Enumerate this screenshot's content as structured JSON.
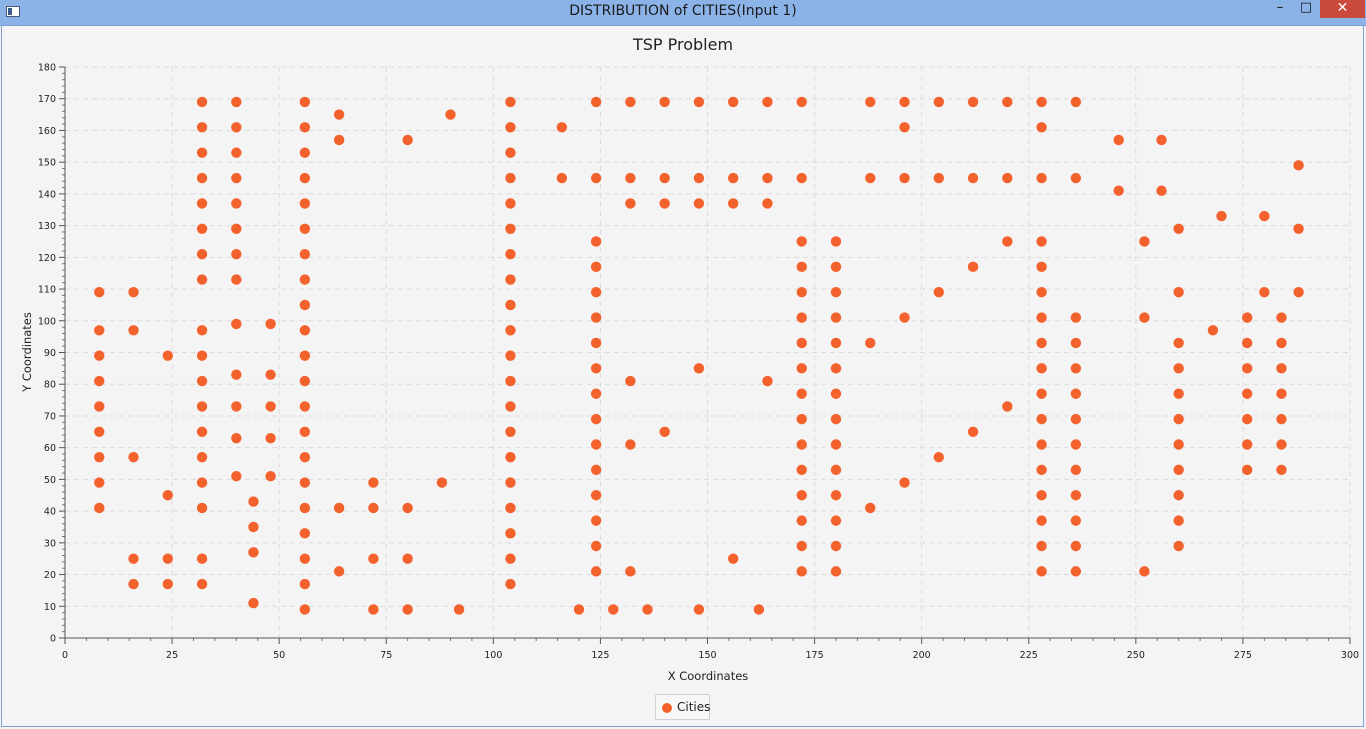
{
  "window": {
    "title": "DISTRIBUTION of CITIES(Input 1)",
    "minimize_icon": "minimize-icon",
    "maximize_icon": "maximize-icon",
    "close_icon": "close-icon",
    "minimize_glyph": "–",
    "maximize_glyph": "□",
    "close_glyph": "✕"
  },
  "chart_data": {
    "type": "scatter",
    "title": "TSP Problem",
    "xlabel": "X Coordinates",
    "ylabel": "Y Coordinates",
    "xlim": [
      0,
      300
    ],
    "ylim": [
      0,
      180
    ],
    "xticks": [
      0,
      25,
      50,
      75,
      100,
      125,
      150,
      175,
      200,
      225,
      250,
      275,
      300
    ],
    "yticks": [
      0,
      10,
      20,
      30,
      40,
      50,
      60,
      70,
      80,
      90,
      100,
      110,
      120,
      130,
      140,
      150,
      160,
      170,
      180
    ],
    "grid": true,
    "legend_position": "bottom-center",
    "series": [
      {
        "name": "Cities",
        "color": "#f3622d",
        "points": [
          [
            8,
            109
          ],
          [
            8,
            97
          ],
          [
            8,
            89
          ],
          [
            8,
            81
          ],
          [
            8,
            73
          ],
          [
            8,
            65
          ],
          [
            8,
            57
          ],
          [
            8,
            49
          ],
          [
            8,
            41
          ],
          [
            16,
            109
          ],
          [
            16,
            97
          ],
          [
            16,
            57
          ],
          [
            16,
            25
          ],
          [
            16,
            17
          ],
          [
            24,
            89
          ],
          [
            24,
            45
          ],
          [
            24,
            25
          ],
          [
            24,
            17
          ],
          [
            32,
            169
          ],
          [
            32,
            161
          ],
          [
            32,
            153
          ],
          [
            32,
            145
          ],
          [
            32,
            137
          ],
          [
            32,
            129
          ],
          [
            32,
            121
          ],
          [
            32,
            113
          ],
          [
            32,
            97
          ],
          [
            32,
            89
          ],
          [
            32,
            81
          ],
          [
            32,
            73
          ],
          [
            32,
            65
          ],
          [
            32,
            57
          ],
          [
            32,
            49
          ],
          [
            32,
            41
          ],
          [
            32,
            25
          ],
          [
            32,
            17
          ],
          [
            40,
            169
          ],
          [
            40,
            161
          ],
          [
            40,
            153
          ],
          [
            40,
            145
          ],
          [
            40,
            137
          ],
          [
            40,
            129
          ],
          [
            40,
            121
          ],
          [
            40,
            113
          ],
          [
            40,
            99
          ],
          [
            40,
            83
          ],
          [
            40,
            73
          ],
          [
            40,
            63
          ],
          [
            40,
            51
          ],
          [
            44,
            43
          ],
          [
            44,
            35
          ],
          [
            44,
            27
          ],
          [
            44,
            11
          ],
          [
            48,
            99
          ],
          [
            48,
            83
          ],
          [
            48,
            73
          ],
          [
            48,
            63
          ],
          [
            48,
            51
          ],
          [
            56,
            169
          ],
          [
            56,
            161
          ],
          [
            56,
            153
          ],
          [
            56,
            145
          ],
          [
            56,
            137
          ],
          [
            56,
            129
          ],
          [
            56,
            121
          ],
          [
            56,
            113
          ],
          [
            56,
            105
          ],
          [
            56,
            97
          ],
          [
            56,
            89
          ],
          [
            56,
            81
          ],
          [
            56,
            73
          ],
          [
            56,
            65
          ],
          [
            56,
            57
          ],
          [
            56,
            49
          ],
          [
            56,
            41
          ],
          [
            56,
            33
          ],
          [
            56,
            25
          ],
          [
            56,
            17
          ],
          [
            56,
            9
          ],
          [
            64,
            165
          ],
          [
            64,
            157
          ],
          [
            64,
            41
          ],
          [
            64,
            21
          ],
          [
            72,
            49
          ],
          [
            72,
            41
          ],
          [
            72,
            25
          ],
          [
            72,
            9
          ],
          [
            80,
            157
          ],
          [
            80,
            41
          ],
          [
            80,
            25
          ],
          [
            80,
            9
          ],
          [
            88,
            49
          ],
          [
            90,
            165
          ],
          [
            92,
            9
          ],
          [
            104,
            169
          ],
          [
            104,
            161
          ],
          [
            104,
            153
          ],
          [
            104,
            145
          ],
          [
            104,
            137
          ],
          [
            104,
            129
          ],
          [
            104,
            121
          ],
          [
            104,
            113
          ],
          [
            104,
            105
          ],
          [
            104,
            97
          ],
          [
            104,
            89
          ],
          [
            104,
            81
          ],
          [
            104,
            73
          ],
          [
            104,
            65
          ],
          [
            104,
            57
          ],
          [
            104,
            49
          ],
          [
            104,
            41
          ],
          [
            104,
            33
          ],
          [
            104,
            25
          ],
          [
            104,
            17
          ],
          [
            116,
            161
          ],
          [
            116,
            145
          ],
          [
            120,
            9
          ],
          [
            124,
            169
          ],
          [
            124,
            145
          ],
          [
            124,
            125
          ],
          [
            124,
            117
          ],
          [
            124,
            109
          ],
          [
            124,
            101
          ],
          [
            124,
            93
          ],
          [
            124,
            85
          ],
          [
            124,
            77
          ],
          [
            124,
            69
          ],
          [
            124,
            61
          ],
          [
            124,
            53
          ],
          [
            124,
            45
          ],
          [
            124,
            37
          ],
          [
            124,
            29
          ],
          [
            124,
            21
          ],
          [
            128,
            9
          ],
          [
            132,
            169
          ],
          [
            132,
            145
          ],
          [
            132,
            137
          ],
          [
            132,
            81
          ],
          [
            132,
            61
          ],
          [
            132,
            21
          ],
          [
            136,
            9
          ],
          [
            140,
            169
          ],
          [
            140,
            145
          ],
          [
            140,
            137
          ],
          [
            140,
            65
          ],
          [
            148,
            169
          ],
          [
            148,
            145
          ],
          [
            148,
            137
          ],
          [
            148,
            85
          ],
          [
            148,
            9
          ],
          [
            156,
            169
          ],
          [
            156,
            145
          ],
          [
            156,
            137
          ],
          [
            156,
            25
          ],
          [
            162,
            9
          ],
          [
            164,
            169
          ],
          [
            164,
            145
          ],
          [
            164,
            137
          ],
          [
            164,
            81
          ],
          [
            172,
            169
          ],
          [
            172,
            145
          ],
          [
            172,
            125
          ],
          [
            172,
            117
          ],
          [
            172,
            109
          ],
          [
            172,
            101
          ],
          [
            172,
            93
          ],
          [
            172,
            85
          ],
          [
            172,
            77
          ],
          [
            172,
            69
          ],
          [
            172,
            61
          ],
          [
            172,
            53
          ],
          [
            172,
            45
          ],
          [
            172,
            37
          ],
          [
            172,
            29
          ],
          [
            172,
            21
          ],
          [
            180,
            125
          ],
          [
            180,
            117
          ],
          [
            180,
            109
          ],
          [
            180,
            101
          ],
          [
            180,
            93
          ],
          [
            180,
            85
          ],
          [
            180,
            77
          ],
          [
            180,
            69
          ],
          [
            180,
            61
          ],
          [
            180,
            53
          ],
          [
            180,
            45
          ],
          [
            180,
            37
          ],
          [
            180,
            29
          ],
          [
            180,
            21
          ],
          [
            188,
            169
          ],
          [
            188,
            145
          ],
          [
            188,
            93
          ],
          [
            188,
            41
          ],
          [
            196,
            169
          ],
          [
            196,
            161
          ],
          [
            196,
            145
          ],
          [
            196,
            101
          ],
          [
            196,
            49
          ],
          [
            204,
            169
          ],
          [
            204,
            145
          ],
          [
            204,
            109
          ],
          [
            204,
            57
          ],
          [
            212,
            169
          ],
          [
            212,
            145
          ],
          [
            212,
            117
          ],
          [
            212,
            65
          ],
          [
            220,
            169
          ],
          [
            220,
            145
          ],
          [
            220,
            125
          ],
          [
            220,
            73
          ],
          [
            228,
            169
          ],
          [
            228,
            161
          ],
          [
            228,
            145
          ],
          [
            228,
            125
          ],
          [
            228,
            117
          ],
          [
            228,
            109
          ],
          [
            228,
            101
          ],
          [
            228,
            93
          ],
          [
            228,
            85
          ],
          [
            228,
            77
          ],
          [
            228,
            69
          ],
          [
            228,
            61
          ],
          [
            228,
            53
          ],
          [
            228,
            45
          ],
          [
            228,
            37
          ],
          [
            228,
            29
          ],
          [
            228,
            21
          ],
          [
            236,
            169
          ],
          [
            236,
            145
          ],
          [
            236,
            101
          ],
          [
            236,
            93
          ],
          [
            236,
            85
          ],
          [
            236,
            77
          ],
          [
            236,
            69
          ],
          [
            236,
            61
          ],
          [
            236,
            53
          ],
          [
            236,
            45
          ],
          [
            236,
            37
          ],
          [
            236,
            29
          ],
          [
            236,
            21
          ],
          [
            246,
            157
          ],
          [
            246,
            141
          ],
          [
            252,
            125
          ],
          [
            252,
            101
          ],
          [
            252,
            21
          ],
          [
            256,
            157
          ],
          [
            256,
            141
          ],
          [
            260,
            129
          ],
          [
            260,
            109
          ],
          [
            260,
            93
          ],
          [
            260,
            85
          ],
          [
            260,
            77
          ],
          [
            260,
            69
          ],
          [
            260,
            61
          ],
          [
            260,
            53
          ],
          [
            260,
            45
          ],
          [
            260,
            37
          ],
          [
            260,
            29
          ],
          [
            268,
            97
          ],
          [
            270,
            133
          ],
          [
            276,
            101
          ],
          [
            276,
            93
          ],
          [
            276,
            85
          ],
          [
            276,
            77
          ],
          [
            276,
            69
          ],
          [
            276,
            61
          ],
          [
            276,
            53
          ],
          [
            280,
            133
          ],
          [
            280,
            109
          ],
          [
            284,
            101
          ],
          [
            284,
            93
          ],
          [
            284,
            85
          ],
          [
            284,
            77
          ],
          [
            284,
            69
          ],
          [
            284,
            61
          ],
          [
            284,
            53
          ],
          [
            288,
            149
          ],
          [
            288,
            129
          ],
          [
            288,
            109
          ]
        ]
      }
    ]
  }
}
